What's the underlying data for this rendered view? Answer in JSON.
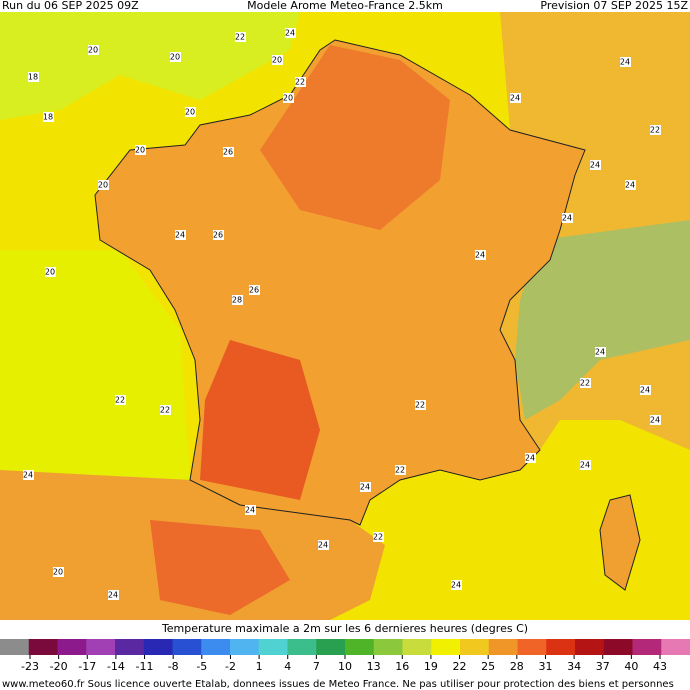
{
  "header": {
    "run": "Run du 06 SEP 2025 09Z",
    "model": "Modele Arome Meteo-France 2.5km",
    "forecast": "Prevision 07 SEP 2025 15Z"
  },
  "map": {
    "labels": [
      "22",
      "24",
      "20",
      "20",
      "20",
      "18",
      "22",
      "20",
      "20",
      "18",
      "26",
      "20",
      "20",
      "24",
      "26",
      "20",
      "28",
      "26",
      "22",
      "22",
      "24",
      "24",
      "22",
      "24",
      "24",
      "24",
      "24",
      "22",
      "24",
      "24",
      "24",
      "24",
      "22",
      "24",
      "24",
      "20",
      "24",
      "24",
      "24",
      "24",
      "22",
      "22",
      "24"
    ]
  },
  "legend": {
    "title": "Temperature maximale a 2m sur les 6 dernieres heures (degres C)",
    "ticks": [
      -23,
      -20,
      -17,
      -14,
      -11,
      -8,
      -5,
      -2,
      1,
      4,
      7,
      10,
      13,
      16,
      19,
      22,
      25,
      28,
      31,
      34,
      37,
      40,
      43
    ],
    "colors": [
      "#8c8c8c",
      "#7a0a3c",
      "#8c1a8c",
      "#a040b4",
      "#5a28a0",
      "#2828b4",
      "#2850d2",
      "#3c8cf0",
      "#50b4f0",
      "#50d2d2",
      "#3cbe8c",
      "#28a050",
      "#50b428",
      "#8cc83c",
      "#c8dc3c",
      "#f0f000",
      "#f0c81e",
      "#f09628",
      "#f06428",
      "#dc3214",
      "#b41414",
      "#8c0a28",
      "#b4287a",
      "#e678b4"
    ]
  },
  "footer": "www.meteo60.fr Sous licence ouverte Etalab, donnees issues de Meteo France. Ne pas utiliser pour protection des biens et personnes"
}
